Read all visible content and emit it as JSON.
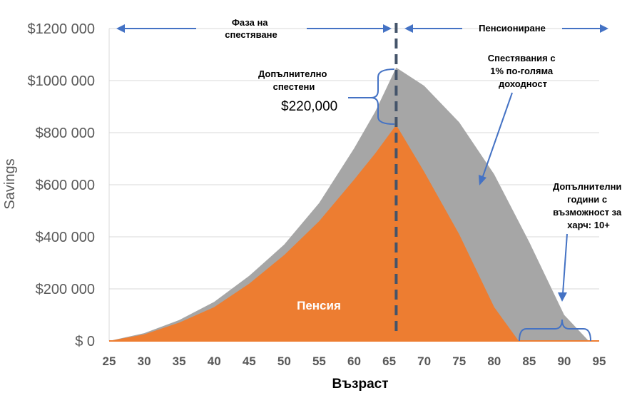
{
  "chart_data": {
    "type": "area",
    "xlabel": "Възраст",
    "ylabel": "Savings",
    "xlim": [
      25,
      95
    ],
    "ylim": [
      0,
      1200000
    ],
    "x_ticks": [
      "25",
      "30",
      "35",
      "40",
      "45",
      "50",
      "55",
      "60",
      "65",
      "70",
      "75",
      "80",
      "85",
      "90",
      "95"
    ],
    "y_ticks": [
      "$ 0",
      "$200 000",
      "$400 000",
      "$600 000",
      "$800 000",
      "$1000 000",
      "$1200 000"
    ],
    "grid": true,
    "colors": {
      "higher_return": "#a6a6a6",
      "base": "#ed7d31",
      "arrows": "#4472c4",
      "divider": "#44546a"
    },
    "series": [
      {
        "name": "Спестявания с 1% по-голяма доходност",
        "x": [
          25,
          30,
          35,
          40,
          45,
          50,
          55,
          60,
          63,
          66,
          70,
          75,
          80,
          85,
          90,
          93.5
        ],
        "y": [
          0,
          30000,
          80000,
          150000,
          250000,
          370000,
          530000,
          740000,
          880000,
          1050000,
          980000,
          840000,
          640000,
          380000,
          100000,
          0
        ]
      },
      {
        "name": "Пенсия",
        "x": [
          25,
          30,
          35,
          40,
          45,
          50,
          55,
          60,
          63,
          66,
          70,
          75,
          80,
          83.5
        ],
        "y": [
          0,
          25000,
          70000,
          130000,
          220000,
          330000,
          460000,
          620000,
          720000,
          830000,
          650000,
          410000,
          130000,
          0
        ]
      }
    ],
    "retirement_age": 66
  },
  "annotations": {
    "phase_saving": "Фаза на спестяване",
    "phase_retirement": "Пенсиониране",
    "extra_saved_label": "Допълнително спестени",
    "extra_saved_value": "$220,000",
    "higher_return_label": "Спестявания с 1% по-голяма доходност",
    "extra_years_label": "Допълнителни години с възможност за харч: 10+",
    "area_label": "Пенсия"
  }
}
